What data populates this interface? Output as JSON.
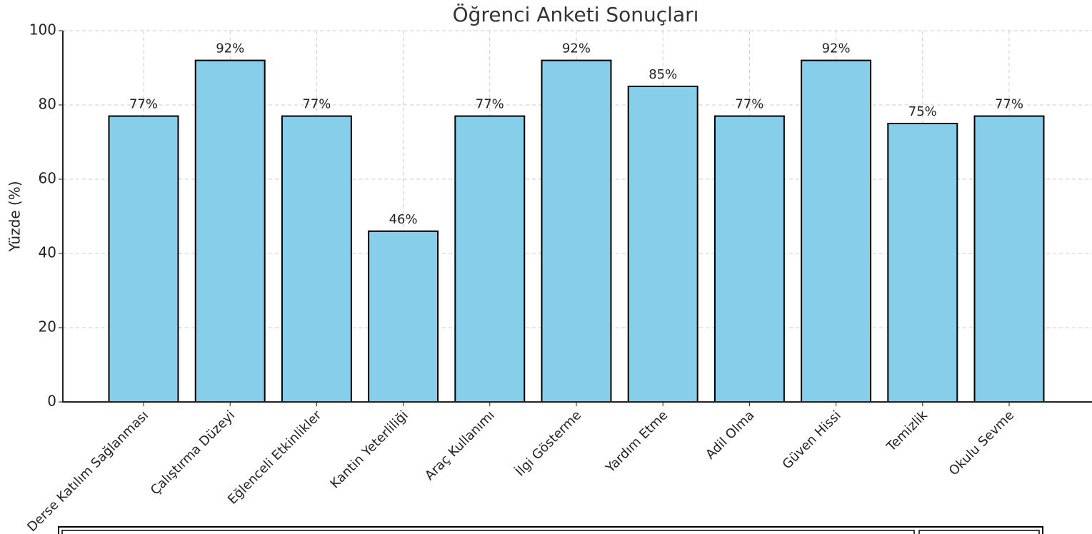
{
  "chart_data": {
    "type": "bar",
    "title": "Öğrenci Anketi Sonuçları",
    "ylabel": "Yüzde (%)",
    "categories": [
      "Derse Katılım Sağlanması",
      "Çalıştırma Düzeyi",
      "Eğlenceli Etkinlikler",
      "Kantin Yeterliliği",
      "Araç Kullanımı",
      "İlgi Gösterme",
      "Yardım Etme",
      "Adil Olma",
      "Güven Hissi",
      "Temizlik",
      "Okulu Sevme"
    ],
    "values": [
      77,
      92,
      77,
      46,
      77,
      92,
      85,
      77,
      92,
      75,
      77
    ],
    "value_labels": [
      "77%",
      "92%",
      "77%",
      "46%",
      "77%",
      "92%",
      "85%",
      "77%",
      "92%",
      "75%",
      "77%"
    ],
    "color": "#87ceeb",
    "edgecolor": "#000000",
    "ylim": [
      0,
      100
    ],
    "yticks": [
      0,
      20,
      40,
      60,
      80,
      100
    ],
    "grid": true
  }
}
